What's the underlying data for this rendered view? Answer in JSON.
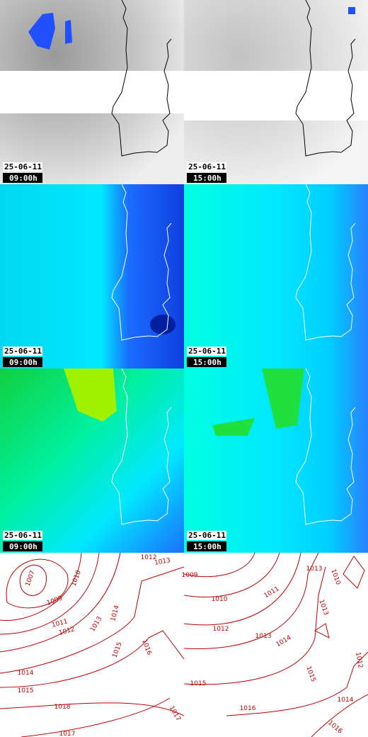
{
  "panels": [
    {
      "date": "25-06-11",
      "time": "09:00h"
    },
    {
      "date": "25-06-11",
      "time": "15:00h"
    },
    {
      "date": "25-06-11",
      "time": "09:00h"
    },
    {
      "date": "25-06-11",
      "time": "15:00h"
    },
    {
      "date": "25-06-11",
      "time": "09:00h"
    },
    {
      "date": "25-06-11",
      "time": "15:00h"
    }
  ],
  "isobars": [
    {
      "labels": [
        "1007",
        "1010",
        "1009",
        "1011",
        "1012",
        "1013",
        "1014",
        "1015",
        "1016",
        "1014",
        "1015",
        "1018",
        "1017",
        "1017",
        "1012",
        "1013"
      ]
    },
    {
      "labels": [
        "1009",
        "1010",
        "1011",
        "1012",
        "1013",
        "1014",
        "1013",
        "1010",
        "1013",
        "1015",
        "1015",
        "1016",
        "1014",
        "1016",
        "1012"
      ]
    }
  ]
}
